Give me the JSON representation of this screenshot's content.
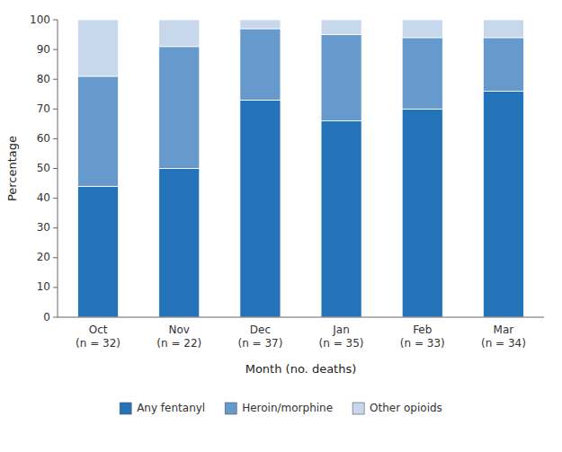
{
  "chart_data": {
    "type": "bar",
    "stacked": true,
    "xlabel": "Month (no. deaths)",
    "ylabel": "Percentage",
    "categories": [
      "Oct\n(n = 32)",
      "Nov\n(n = 22)",
      "Dec\n(n = 37)",
      "Jan\n(n = 35)",
      "Feb\n(n = 33)",
      "Mar\n(n = 34)"
    ],
    "series": [
      {
        "name": "Any fentanyl",
        "color": "#2472B8",
        "values": [
          44,
          50,
          73,
          66,
          70,
          76
        ]
      },
      {
        "name": "Heroin/morphine",
        "color": "#6699CC",
        "values": [
          37,
          41,
          24,
          29,
          24,
          18
        ]
      },
      {
        "name": "Other opioids",
        "color": "#C8D8EC",
        "values": [
          19,
          9,
          3,
          5,
          6,
          6
        ]
      }
    ],
    "ylim": [
      0,
      100
    ],
    "yticks": [
      0,
      10,
      20,
      30,
      40,
      50,
      60,
      70,
      80,
      90,
      100
    ],
    "grid": false,
    "legend": "bottom"
  }
}
